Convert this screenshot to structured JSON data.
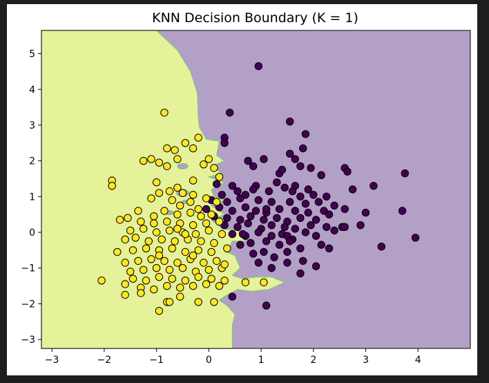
{
  "chart_data": {
    "type": "scatter",
    "title": "KNN Decision Boundary (K = 1)",
    "xlabel": "",
    "ylabel": "",
    "xlim": [
      -3.2,
      5.0
    ],
    "ylim": [
      -3.25,
      5.65
    ],
    "xticks": [
      -3,
      -2,
      -1,
      0,
      1,
      2,
      3,
      4
    ],
    "yticks": [
      -3,
      -2,
      -1,
      0,
      1,
      2,
      3,
      4,
      5
    ],
    "grid": false,
    "legend": "none",
    "colors": {
      "region_class_0": "#b3a0c6",
      "region_class_1": "#e6f29a",
      "boundary": "#7fc77f",
      "point_class_0": "#440154",
      "point_class_1": "#fde725",
      "point_edge": "#000000"
    },
    "series": [
      {
        "class": 0,
        "points": [
          [
            0.95,
            4.65
          ],
          [
            0.4,
            3.35
          ],
          [
            1.55,
            3.1
          ],
          [
            0.3,
            2.65
          ],
          [
            0.3,
            2.5
          ],
          [
            1.85,
            2.75
          ],
          [
            1.55,
            2.2
          ],
          [
            1.8,
            2.35
          ],
          [
            0.75,
            2.0
          ],
          [
            1.05,
            2.05
          ],
          [
            1.65,
            2.05
          ],
          [
            0.85,
            1.85
          ],
          [
            1.35,
            1.65
          ],
          [
            1.4,
            1.75
          ],
          [
            1.75,
            1.85
          ],
          [
            1.95,
            1.8
          ],
          [
            2.6,
            1.8
          ],
          [
            2.65,
            1.7
          ],
          [
            2.15,
            1.6
          ],
          [
            2.75,
            1.2
          ],
          [
            3.15,
            1.3
          ],
          [
            3.75,
            1.65
          ],
          [
            0.15,
            1.35
          ],
          [
            0.45,
            1.3
          ],
          [
            0.9,
            1.3
          ],
          [
            1.3,
            1.4
          ],
          [
            1.65,
            1.3
          ],
          [
            1.9,
            1.2
          ],
          [
            0.25,
            1.05
          ],
          [
            0.55,
            1.15
          ],
          [
            0.7,
            1.05
          ],
          [
            0.85,
            1.2
          ],
          [
            1.15,
            1.15
          ],
          [
            1.45,
            1.25
          ],
          [
            1.6,
            1.15
          ],
          [
            1.75,
            1.0
          ],
          [
            2.0,
            1.05
          ],
          [
            2.25,
            1.0
          ],
          [
            0.05,
            0.9
          ],
          [
            0.35,
            0.85
          ],
          [
            0.6,
            0.95
          ],
          [
            0.95,
            0.9
          ],
          [
            1.2,
            0.85
          ],
          [
            1.55,
            0.85
          ],
          [
            1.85,
            0.8
          ],
          [
            2.1,
            0.85
          ],
          [
            2.4,
            0.75
          ],
          [
            -0.05,
            0.65
          ],
          [
            0.2,
            0.7
          ],
          [
            0.45,
            0.6
          ],
          [
            0.7,
            0.7
          ],
          [
            0.9,
            0.6
          ],
          [
            1.1,
            0.55
          ],
          [
            1.35,
            0.65
          ],
          [
            1.65,
            0.6
          ],
          [
            1.9,
            0.55
          ],
          [
            2.2,
            0.6
          ],
          [
            2.6,
            0.65
          ],
          [
            3.0,
            0.55
          ],
          [
            3.7,
            0.6
          ],
          [
            0.1,
            0.45
          ],
          [
            0.35,
            0.4
          ],
          [
            0.6,
            0.35
          ],
          [
            0.8,
            0.45
          ],
          [
            1.05,
            0.35
          ],
          [
            1.3,
            0.4
          ],
          [
            1.5,
            0.3
          ],
          [
            1.75,
            0.4
          ],
          [
            2.05,
            0.35
          ],
          [
            2.3,
            0.5
          ],
          [
            0.3,
            0.2
          ],
          [
            0.55,
            0.15
          ],
          [
            0.75,
            0.25
          ],
          [
            1.0,
            0.1
          ],
          [
            1.2,
            0.2
          ],
          [
            1.45,
            0.15
          ],
          [
            1.65,
            0.1
          ],
          [
            1.95,
            0.2
          ],
          [
            2.25,
            0.15
          ],
          [
            2.55,
            0.15
          ],
          [
            2.9,
            0.2
          ],
          [
            0.45,
            -0.05
          ],
          [
            0.7,
            -0.1
          ],
          [
            0.95,
            0.0
          ],
          [
            1.2,
            -0.1
          ],
          [
            1.4,
            -0.05
          ],
          [
            1.6,
            -0.2
          ],
          [
            1.85,
            0.0
          ],
          [
            2.05,
            -0.1
          ],
          [
            2.4,
            0.05
          ],
          [
            0.6,
            -0.35
          ],
          [
            0.8,
            -0.3
          ],
          [
            1.1,
            -0.25
          ],
          [
            1.35,
            -0.35
          ],
          [
            1.5,
            -0.1
          ],
          [
            1.55,
            -0.25
          ],
          [
            1.75,
            -0.45
          ],
          [
            2.15,
            -0.35
          ],
          [
            3.3,
            -0.4
          ],
          [
            3.95,
            -0.15
          ],
          [
            0.85,
            -0.6
          ],
          [
            1.05,
            -0.55
          ],
          [
            1.25,
            -0.7
          ],
          [
            1.5,
            -0.55
          ],
          [
            0.95,
            -0.85
          ],
          [
            1.2,
            -1.0
          ],
          [
            1.5,
            -0.85
          ],
          [
            1.8,
            -0.8
          ],
          [
            2.05,
            -0.95
          ],
          [
            1.75,
            -1.15
          ],
          [
            0.45,
            -1.8
          ],
          [
            1.1,
            -2.05
          ],
          [
            0.65,
            -0.05
          ],
          [
            1.1,
            0.65
          ],
          [
            2.6,
            0.15
          ],
          [
            2.3,
            -0.45
          ]
        ]
      },
      {
        "class": 1,
        "points": [
          [
            -0.85,
            3.35
          ],
          [
            -0.2,
            2.65
          ],
          [
            -0.8,
            2.35
          ],
          [
            -0.65,
            2.3
          ],
          [
            -0.45,
            2.5
          ],
          [
            -0.3,
            2.35
          ],
          [
            -1.25,
            2.0
          ],
          [
            -1.1,
            2.05
          ],
          [
            -0.95,
            1.95
          ],
          [
            -0.6,
            2.05
          ],
          [
            0.0,
            2.05
          ],
          [
            -0.8,
            1.85
          ],
          [
            -0.1,
            1.9
          ],
          [
            0.1,
            1.8
          ],
          [
            -1.85,
            1.45
          ],
          [
            -1.85,
            1.3
          ],
          [
            -1.0,
            1.4
          ],
          [
            -0.6,
            1.25
          ],
          [
            -0.3,
            1.45
          ],
          [
            0.2,
            1.55
          ],
          [
            -0.95,
            1.1
          ],
          [
            -0.75,
            1.15
          ],
          [
            -0.5,
            1.1
          ],
          [
            -0.3,
            1.05
          ],
          [
            -1.1,
            0.95
          ],
          [
            -0.7,
            0.9
          ],
          [
            -0.35,
            0.85
          ],
          [
            -0.05,
            0.95
          ],
          [
            0.15,
            0.85
          ],
          [
            -1.35,
            0.6
          ],
          [
            -1.05,
            0.45
          ],
          [
            -0.85,
            0.6
          ],
          [
            -0.6,
            0.5
          ],
          [
            -0.35,
            0.55
          ],
          [
            -0.15,
            0.45
          ],
          [
            0.05,
            0.5
          ],
          [
            -1.7,
            0.35
          ],
          [
            -1.55,
            0.4
          ],
          [
            -1.3,
            0.3
          ],
          [
            -1.05,
            0.25
          ],
          [
            -0.8,
            0.3
          ],
          [
            -0.55,
            0.25
          ],
          [
            -0.3,
            0.2
          ],
          [
            -0.05,
            0.25
          ],
          [
            0.2,
            0.3
          ],
          [
            -1.5,
            0.05
          ],
          [
            -1.25,
            0.1
          ],
          [
            -1.0,
            0.0
          ],
          [
            -0.75,
            0.05
          ],
          [
            -0.5,
            0.0
          ],
          [
            -0.25,
            -0.05
          ],
          [
            0.0,
            0.05
          ],
          [
            0.25,
            -0.05
          ],
          [
            -1.75,
            -0.55
          ],
          [
            -1.6,
            -0.2
          ],
          [
            -1.4,
            -0.15
          ],
          [
            -1.15,
            -0.25
          ],
          [
            -0.9,
            -0.2
          ],
          [
            -0.65,
            -0.25
          ],
          [
            -0.4,
            -0.2
          ],
          [
            -0.15,
            -0.25
          ],
          [
            0.1,
            -0.3
          ],
          [
            -1.45,
            -0.5
          ],
          [
            -1.2,
            -0.45
          ],
          [
            -0.95,
            -0.5
          ],
          [
            -0.7,
            -0.45
          ],
          [
            -0.45,
            -0.55
          ],
          [
            -0.2,
            -0.5
          ],
          [
            0.05,
            -0.55
          ],
          [
            -1.6,
            -0.85
          ],
          [
            -1.35,
            -0.8
          ],
          [
            -1.1,
            -0.75
          ],
          [
            -0.85,
            -0.8
          ],
          [
            -0.6,
            -0.85
          ],
          [
            -0.35,
            -0.75
          ],
          [
            -0.1,
            -0.85
          ],
          [
            0.15,
            -0.8
          ],
          [
            -1.5,
            -1.1
          ],
          [
            -1.25,
            -1.05
          ],
          [
            -1.0,
            -1.0
          ],
          [
            -0.75,
            -1.05
          ],
          [
            -0.5,
            -1.0
          ],
          [
            -0.25,
            -1.1
          ],
          [
            0.0,
            -1.05
          ],
          [
            0.25,
            -1.0
          ],
          [
            -1.45,
            -1.3
          ],
          [
            -1.2,
            -1.35
          ],
          [
            -0.95,
            -1.25
          ],
          [
            -0.7,
            -1.3
          ],
          [
            -0.45,
            -1.35
          ],
          [
            -0.2,
            -1.25
          ],
          [
            0.05,
            -1.3
          ],
          [
            0.3,
            -1.35
          ],
          [
            -2.05,
            -1.35
          ],
          [
            -1.6,
            -1.45
          ],
          [
            -1.3,
            -1.55
          ],
          [
            -1.05,
            -1.6
          ],
          [
            -0.8,
            -1.5
          ],
          [
            -0.55,
            -1.55
          ],
          [
            -0.3,
            -1.5
          ],
          [
            -0.05,
            -1.45
          ],
          [
            0.2,
            -1.5
          ],
          [
            -1.6,
            -1.75
          ],
          [
            -1.3,
            -1.7
          ],
          [
            -0.8,
            -1.95
          ],
          [
            -0.75,
            -1.95
          ],
          [
            -0.55,
            -1.8
          ],
          [
            -0.2,
            -1.95
          ],
          [
            0.1,
            -1.95
          ],
          [
            -0.95,
            -2.2
          ],
          [
            0.35,
            -0.45
          ],
          [
            0.3,
            -0.9
          ],
          [
            0.7,
            -1.4
          ],
          [
            1.05,
            -1.4
          ],
          [
            -0.55,
            0.75
          ],
          [
            -0.2,
            0.65
          ],
          [
            -0.95,
            -0.65
          ],
          [
            -0.6,
            0.1
          ],
          [
            -0.3,
            -0.65
          ],
          [
            -0.45,
            -0.05
          ]
        ]
      }
    ]
  }
}
